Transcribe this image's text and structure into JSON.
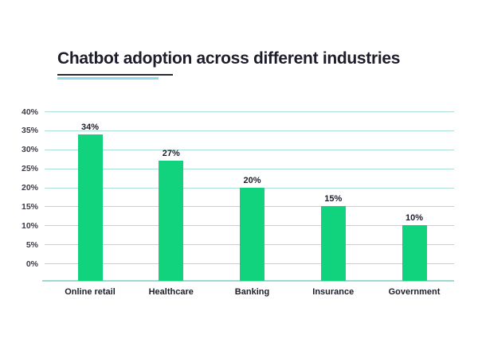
{
  "title": {
    "text": "Chatbot adoption across different industries"
  },
  "colors": {
    "bar": "#11d37e",
    "gridline": "#abdfd6",
    "axis_line": "#9cd9cf",
    "title_text": "#1d1d2b",
    "title_underline_dark": "#2b2b34",
    "title_underline_cyan": "#8fd8e9",
    "tick_text": "#3c3c49"
  },
  "chart_data": {
    "type": "bar",
    "title": "Chatbot adoption across different industries",
    "categories": [
      "Online retail",
      "Healthcare",
      "Banking",
      "Insurance",
      "Government"
    ],
    "values": [
      34,
      27,
      20,
      15,
      10
    ],
    "value_labels": [
      "34%",
      "27%",
      "20%",
      "15%",
      "10%"
    ],
    "y_ticks": [
      {
        "value": 40,
        "label": "40%"
      },
      {
        "value": 35,
        "label": "35%"
      },
      {
        "value": 30,
        "label": "30%"
      },
      {
        "value": 25,
        "label": "25%"
      },
      {
        "value": 20,
        "label": "20%"
      },
      {
        "value": 15,
        "label": "15%"
      },
      {
        "value": 10,
        "label": "10%"
      },
      {
        "value": 5,
        "label": "5%"
      },
      {
        "value": 0,
        "label": "0%"
      }
    ],
    "ylim": [
      0,
      40
    ],
    "xlabel": "",
    "ylabel": "",
    "grid": true,
    "legend": false,
    "bar_color": "#11d37e"
  }
}
